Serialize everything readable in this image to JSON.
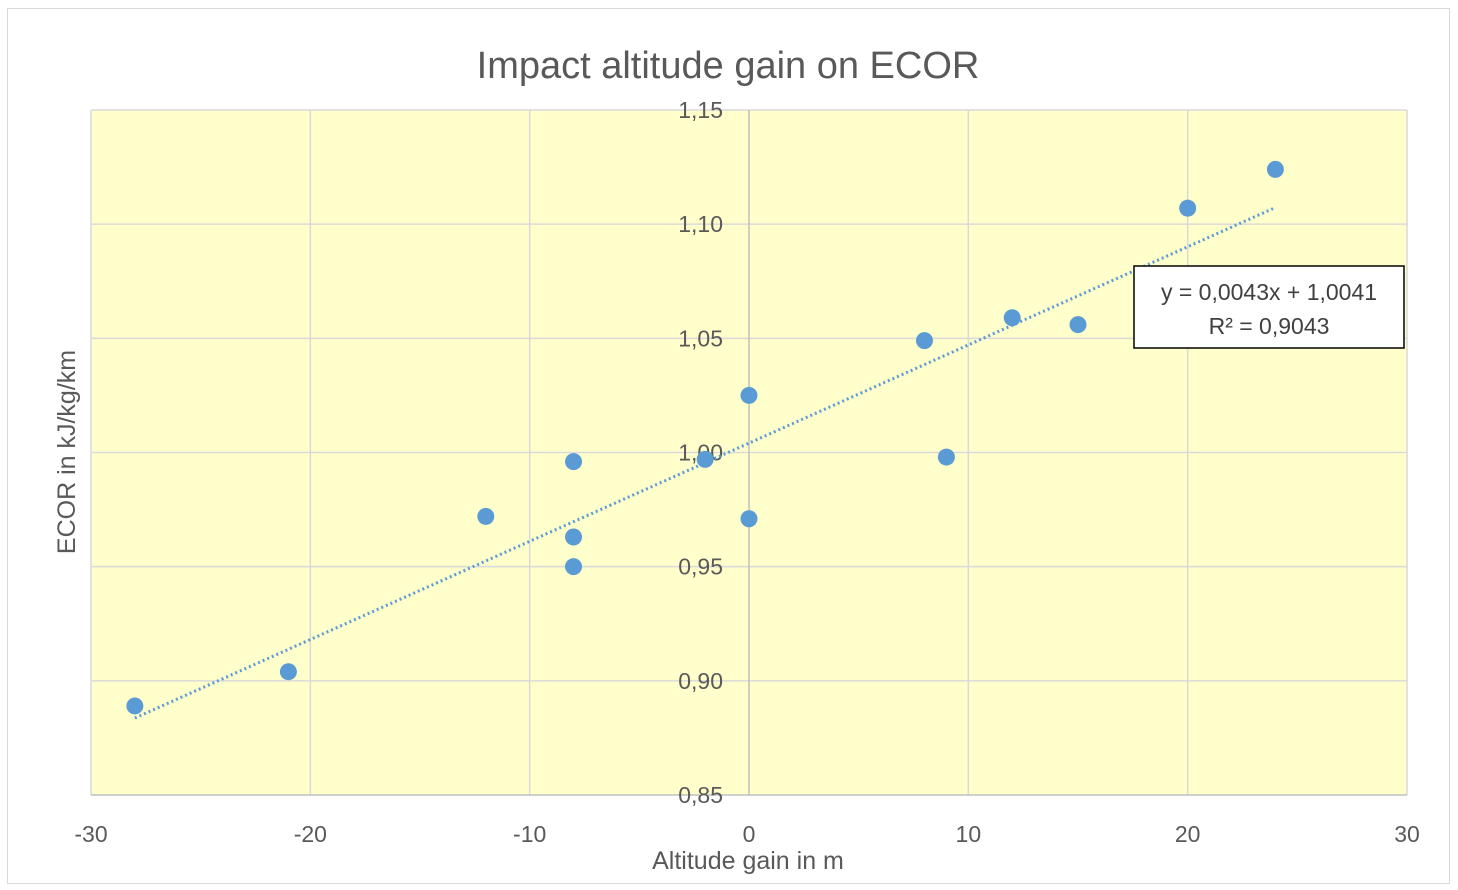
{
  "chart_data": {
    "type": "scatter",
    "title": "Impact altitude gain on ECOR",
    "xlabel": "Altitude gain in m",
    "ylabel": "ECOR in kJ/kg/km",
    "xlim": [
      -30,
      30
    ],
    "ylim": [
      0.85,
      1.15
    ],
    "x_ticks": [
      -30,
      -20,
      -10,
      0,
      10,
      20,
      30
    ],
    "y_ticks": [
      0.85,
      0.9,
      0.95,
      1.0,
      1.05,
      1.1,
      1.15
    ],
    "x_tick_labels": [
      "-30",
      "-20",
      "-10",
      "0",
      "10",
      "20",
      "30"
    ],
    "y_tick_labels": [
      "0,85",
      "0,90",
      "0,95",
      "1,00",
      "1,05",
      "1,10",
      "1,15"
    ],
    "grid": true,
    "plot_background": "#ffffcc",
    "marker_color": "#5b9bd5",
    "points": [
      {
        "x": -28,
        "y": 0.889
      },
      {
        "x": -21,
        "y": 0.904
      },
      {
        "x": -12,
        "y": 0.972
      },
      {
        "x": -8,
        "y": 0.996
      },
      {
        "x": -8,
        "y": 0.963
      },
      {
        "x": -8,
        "y": 0.95
      },
      {
        "x": -2,
        "y": 0.997
      },
      {
        "x": 0,
        "y": 1.025
      },
      {
        "x": 0,
        "y": 0.971
      },
      {
        "x": 8,
        "y": 1.049
      },
      {
        "x": 9,
        "y": 0.998
      },
      {
        "x": 12,
        "y": 1.059
      },
      {
        "x": 15,
        "y": 1.056
      },
      {
        "x": 20,
        "y": 1.107
      },
      {
        "x": 24,
        "y": 1.124
      }
    ],
    "trendline": {
      "type": "linear",
      "style": "dotted",
      "slope": 0.0043,
      "intercept": 1.0041,
      "x_range": [
        -28,
        24
      ],
      "equation_label": "y = 0,0043x + 1,0041",
      "r2_label": "R² = 0,9043"
    }
  }
}
